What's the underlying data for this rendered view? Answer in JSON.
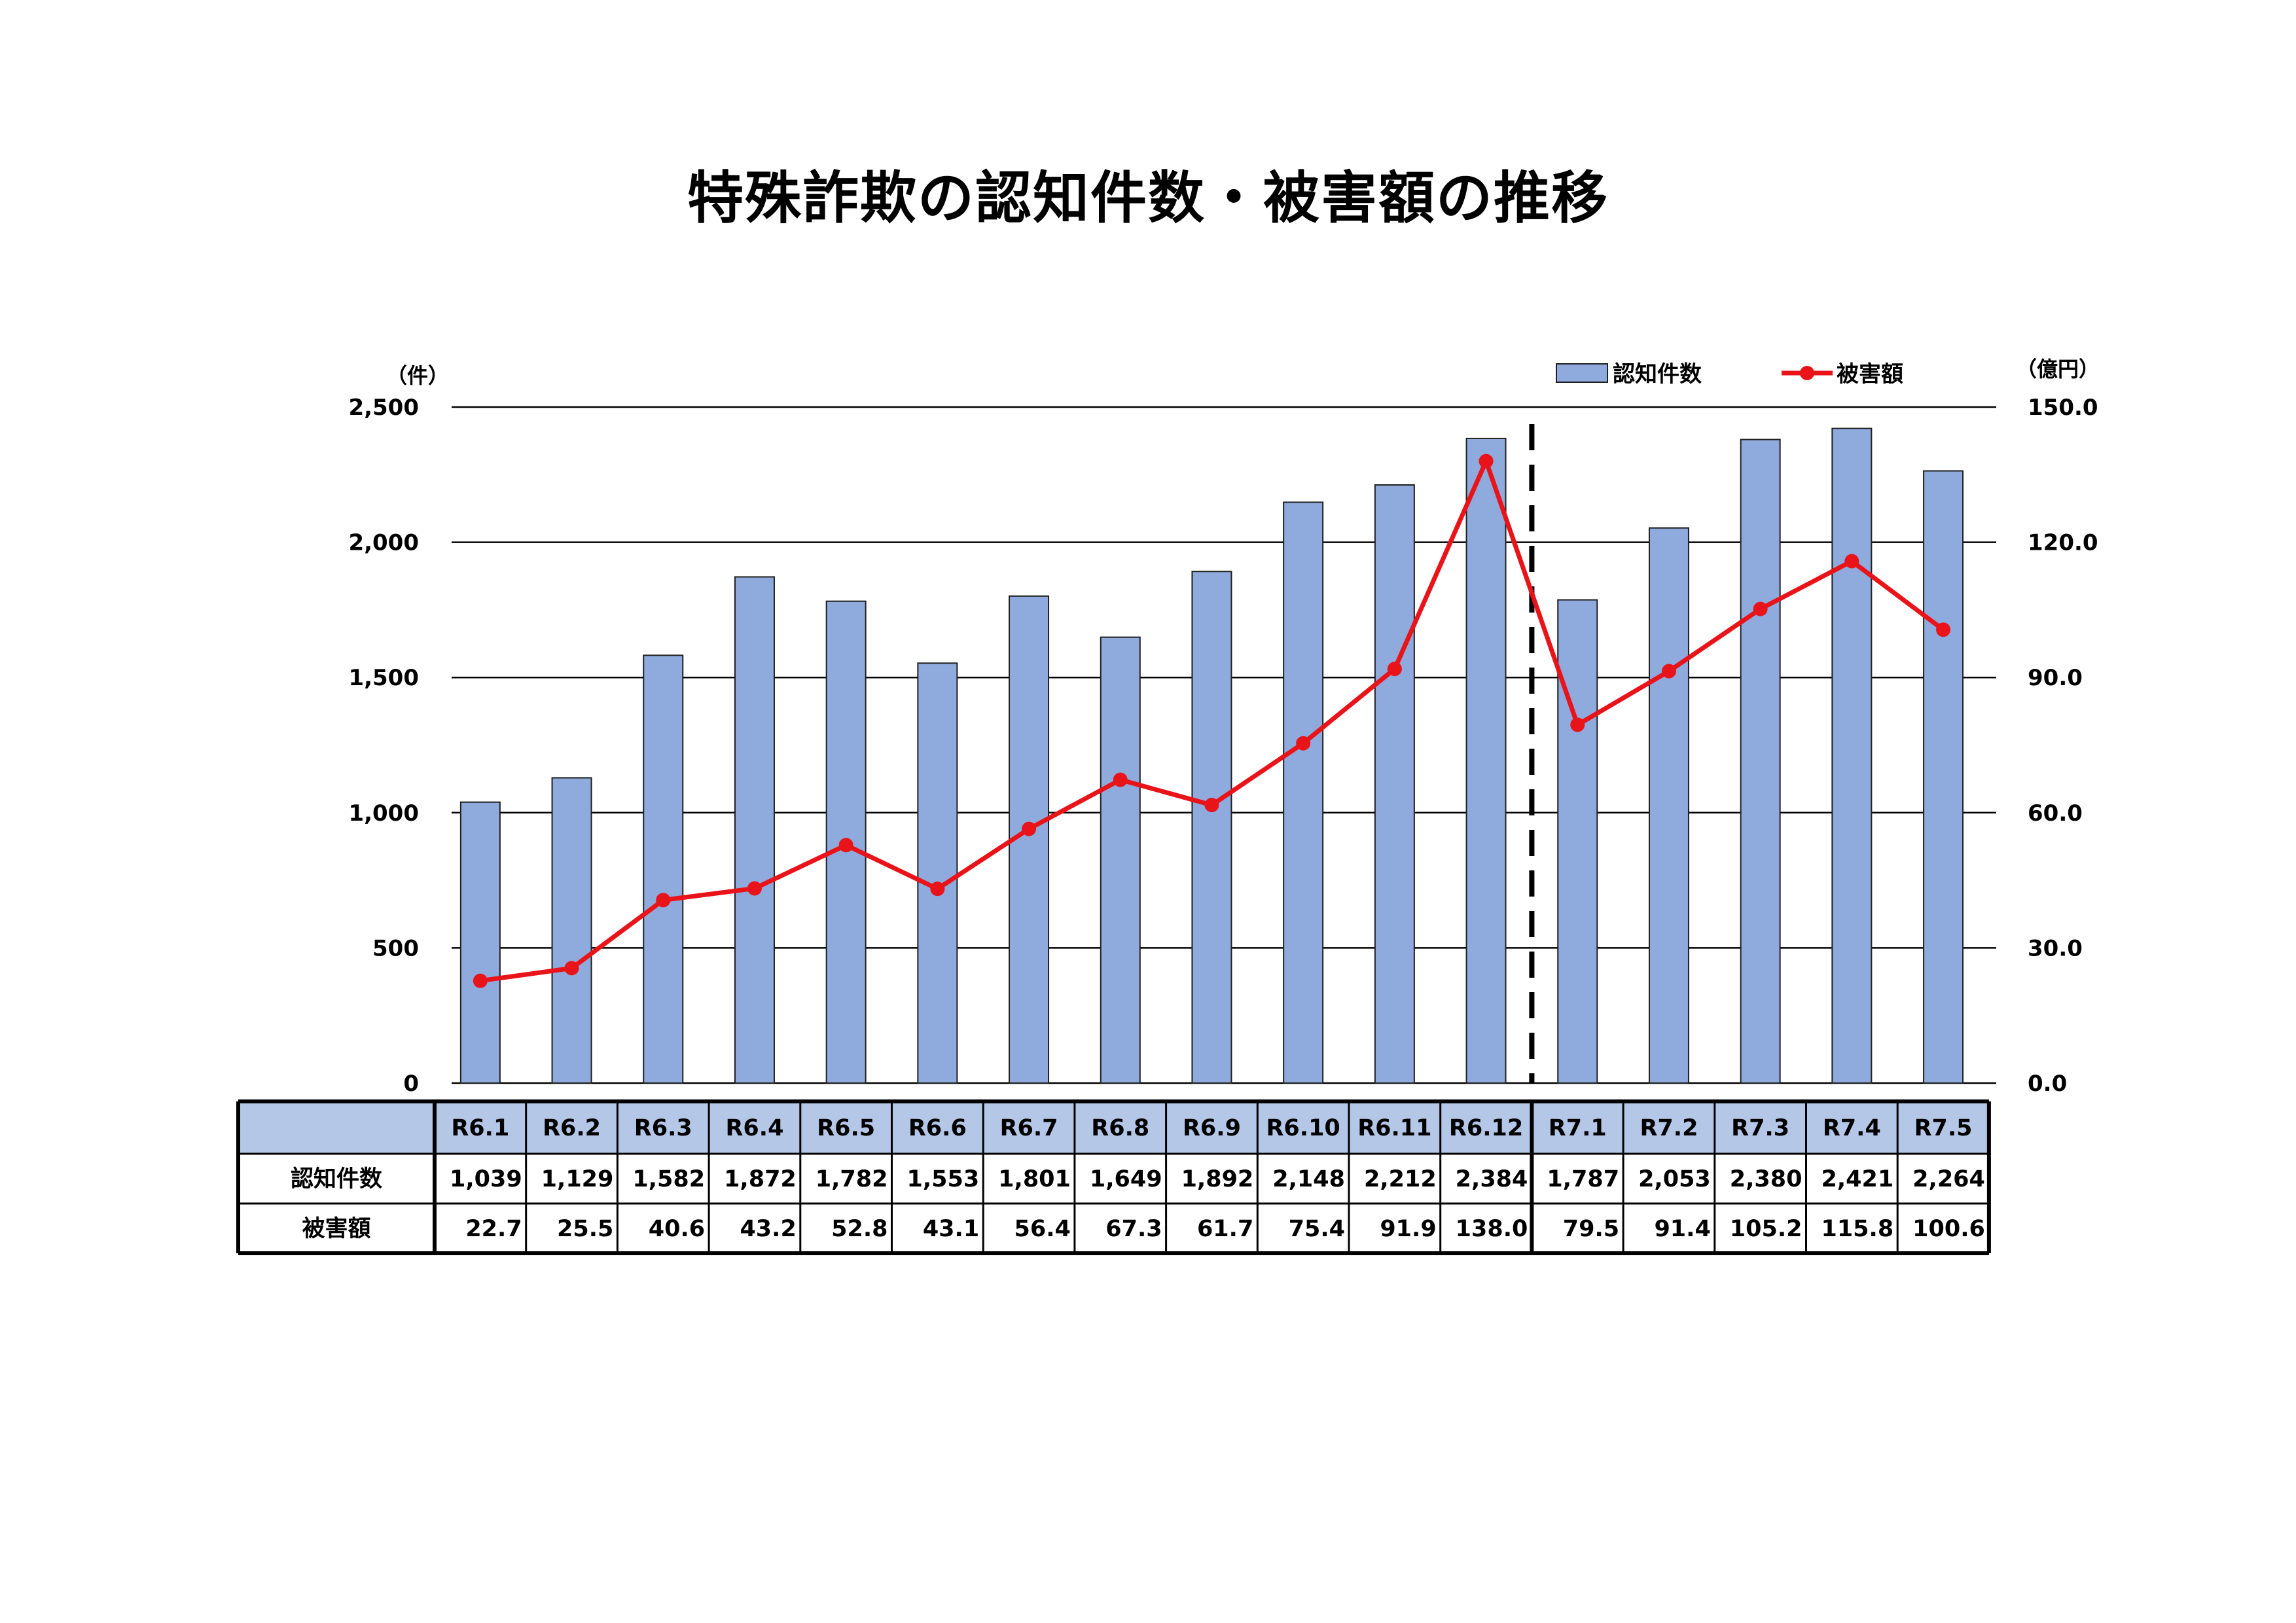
{
  "title": "特殊詐欺の認知件数・被害額の推移",
  "colors": {
    "bar": "#8faadc",
    "bar_stroke": "#1f1f1f",
    "line": "#e8141a",
    "grid": "#000000",
    "header_fill": "#b4c7e7"
  },
  "chart_data": {
    "type": "bar+line",
    "categories": [
      "R6.1",
      "R6.2",
      "R6.3",
      "R6.4",
      "R6.5",
      "R6.6",
      "R6.7",
      "R6.8",
      "R6.9",
      "R6.10",
      "R6.11",
      "R6.12",
      "R7.1",
      "R7.2",
      "R7.3",
      "R7.4",
      "R7.5"
    ],
    "series": [
      {
        "name": "認知件数",
        "type": "bar",
        "axis": "left",
        "values": [
          1039,
          1129,
          1582,
          1872,
          1782,
          1553,
          1801,
          1649,
          1892,
          2148,
          2212,
          2384,
          1787,
          2053,
          2380,
          2421,
          2264
        ]
      },
      {
        "name": "被害額",
        "type": "line",
        "axis": "right",
        "values": [
          22.7,
          25.5,
          40.6,
          43.2,
          52.8,
          43.1,
          56.4,
          67.3,
          61.7,
          75.4,
          91.9,
          138.0,
          79.5,
          91.4,
          105.2,
          115.8,
          100.6
        ]
      }
    ],
    "left_axis": {
      "unit": "（件）",
      "ylim": [
        0,
        2500
      ],
      "ticks": [
        "0",
        "500",
        "1,000",
        "1,500",
        "2,000",
        "2,500"
      ]
    },
    "right_axis": {
      "unit": "（億円）",
      "ylim": [
        0,
        150
      ],
      "ticks": [
        "0.0",
        "30.0",
        "60.0",
        "90.0",
        "120.0",
        "150.0"
      ]
    },
    "grid": true,
    "divider_after_category": "R6.12",
    "legend_position": "top-right"
  },
  "table": {
    "rows": [
      {
        "label": "認知件数",
        "values": [
          "1,039",
          "1,129",
          "1,582",
          "1,872",
          "1,782",
          "1,553",
          "1,801",
          "1,649",
          "1,892",
          "2,148",
          "2,212",
          "2,384",
          "1,787",
          "2,053",
          "2,380",
          "2,421",
          "2,264"
        ]
      },
      {
        "label": "被害額",
        "values": [
          "22.7",
          "25.5",
          "40.6",
          "43.2",
          "52.8",
          "43.1",
          "56.4",
          "67.3",
          "61.7",
          "75.4",
          "91.9",
          "138.0",
          "79.5",
          "91.4",
          "105.2",
          "115.8",
          "100.6"
        ]
      }
    ]
  }
}
